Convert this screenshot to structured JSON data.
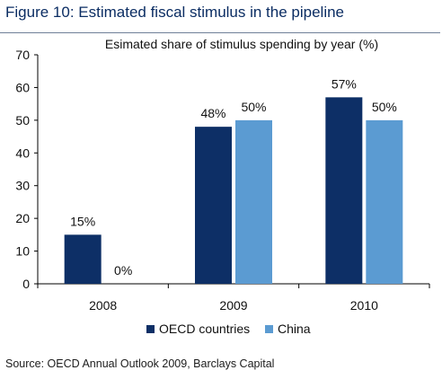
{
  "figure_title": "Figure 10: Estimated fiscal stimulus in the pipeline",
  "source": "Source: OECD Annual Outlook 2009, Barclays Capital",
  "colors": {
    "oecd": "#0d2f66",
    "china": "#5b9bd2",
    "title": "#0b2d63"
  },
  "chart_data": {
    "type": "bar",
    "title": "Esimated share of stimulus spending by year (%)",
    "categories": [
      "2008",
      "2009",
      "2010"
    ],
    "series": [
      {
        "name": "OECD countries",
        "values": [
          15,
          48,
          57
        ],
        "labels": [
          "15%",
          "48%",
          "57%"
        ]
      },
      {
        "name": "China",
        "values": [
          0,
          50,
          50
        ],
        "labels": [
          "0%",
          "50%",
          "50%"
        ]
      }
    ],
    "ylim": [
      0,
      70
    ],
    "yticks": [
      0,
      10,
      20,
      30,
      40,
      50,
      60,
      70
    ],
    "grid": false,
    "legend": "bottom"
  }
}
